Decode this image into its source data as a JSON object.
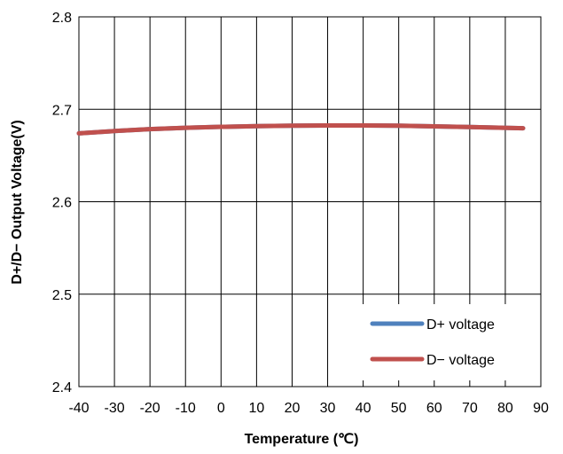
{
  "chart_data": {
    "type": "line",
    "title": "",
    "xlabel": "Temperature (℃)",
    "ylabel": "D+/D− Output Voltage(V)",
    "xlim": [
      -40,
      90
    ],
    "ylim": [
      2.4,
      2.8
    ],
    "xticks": [
      -40,
      -30,
      -20,
      -10,
      0,
      10,
      20,
      30,
      40,
      50,
      60,
      70,
      80,
      90
    ],
    "yticks": [
      2.4,
      2.5,
      2.6,
      2.7,
      2.8
    ],
    "xtick_labels": [
      "-40",
      "-30",
      "-20",
      "-10",
      "0",
      "10",
      "20",
      "30",
      "40",
      "50",
      "60",
      "70",
      "80",
      "90"
    ],
    "ytick_labels": [
      "2.4",
      "2.5",
      "2.6",
      "2.7",
      "2.8"
    ],
    "grid": true,
    "legend_position": "bottom-right",
    "series": [
      {
        "name": "D+ voltage",
        "color": "#4F81BD",
        "x": [
          -40,
          -30,
          -20,
          -10,
          0,
          10,
          20,
          30,
          40,
          50,
          60,
          70,
          85
        ],
        "y": [
          2.674,
          2.6765,
          2.6785,
          2.68,
          2.681,
          2.6818,
          2.6822,
          2.6825,
          2.6825,
          2.6822,
          2.6815,
          2.6808,
          2.6795
        ]
      },
      {
        "name": "D− voltage",
        "color": "#C0504D",
        "x": [
          -40,
          -30,
          -20,
          -10,
          0,
          10,
          20,
          30,
          40,
          50,
          60,
          70,
          85
        ],
        "y": [
          2.674,
          2.6765,
          2.6785,
          2.68,
          2.681,
          2.6818,
          2.6822,
          2.6825,
          2.6825,
          2.6822,
          2.6815,
          2.6808,
          2.6795
        ]
      }
    ]
  }
}
